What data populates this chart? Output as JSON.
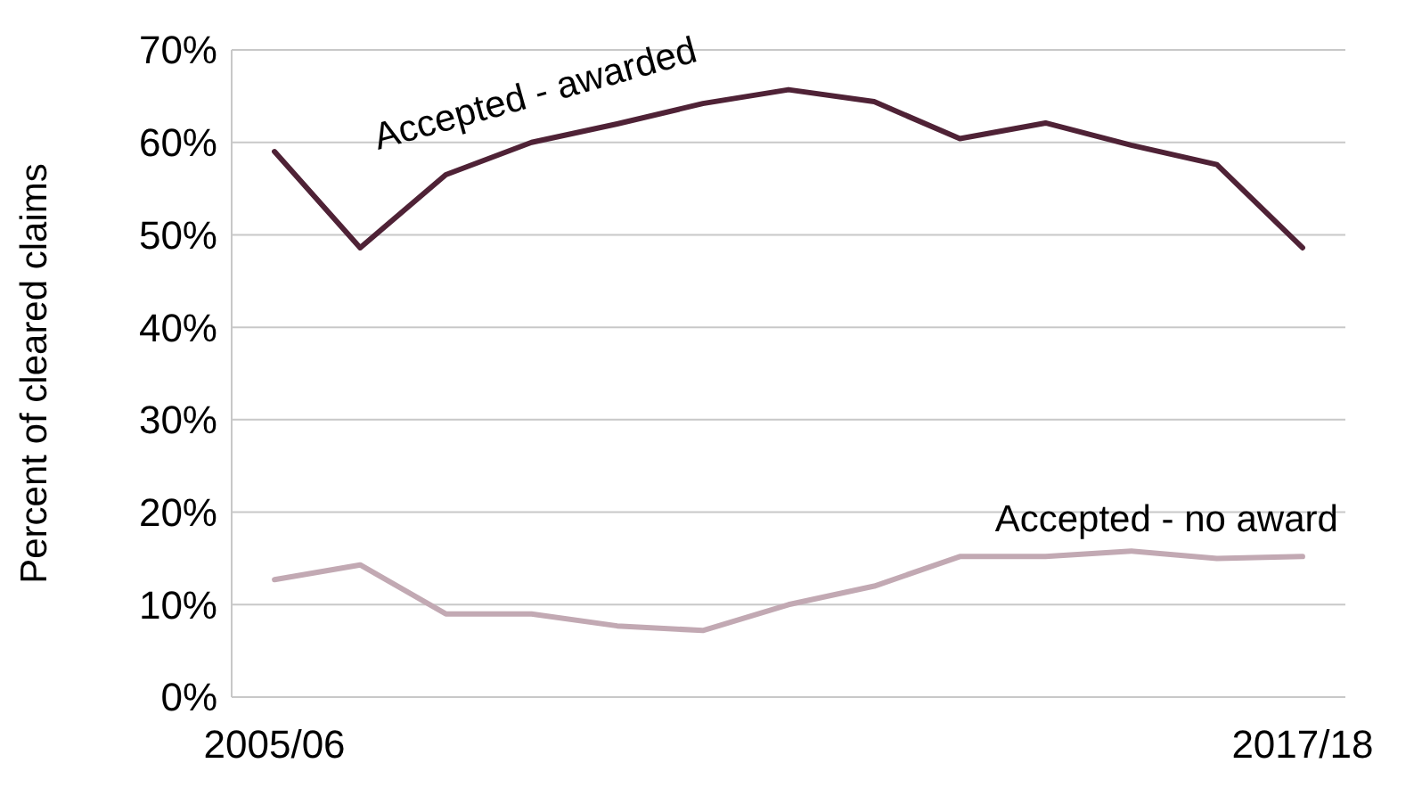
{
  "chart_data": {
    "type": "line",
    "ylabel": "Percent of cleared claims",
    "categories": [
      "2005/06",
      null,
      null,
      null,
      null,
      null,
      null,
      null,
      null,
      null,
      null,
      null,
      "2017/18"
    ],
    "series": [
      {
        "name": "Accepted - awarded",
        "color": "#4f2236",
        "values": [
          59,
          48.6,
          56.5,
          60,
          62,
          64.2,
          65.7,
          64.4,
          60.4,
          62.1,
          59.7,
          57.6,
          48.6
        ]
      },
      {
        "name": "Accepted - no award",
        "color": "#c2a9b3",
        "values": [
          12.7,
          14.3,
          9,
          9,
          7.7,
          7.2,
          10,
          12,
          15.2,
          15.2,
          15.8,
          15,
          15.2
        ]
      }
    ],
    "ylim": [
      0,
      70
    ],
    "yticks": [
      {
        "value": 0,
        "label": "0%"
      },
      {
        "value": 10,
        "label": "10%"
      },
      {
        "value": 20,
        "label": "20%"
      },
      {
        "value": 30,
        "label": "30%"
      },
      {
        "value": 40,
        "label": "40%"
      },
      {
        "value": 50,
        "label": "50%"
      },
      {
        "value": 60,
        "label": "60%"
      },
      {
        "value": 70,
        "label": "70%"
      }
    ],
    "grid": "y",
    "marker": "none",
    "line_style": "solid"
  }
}
